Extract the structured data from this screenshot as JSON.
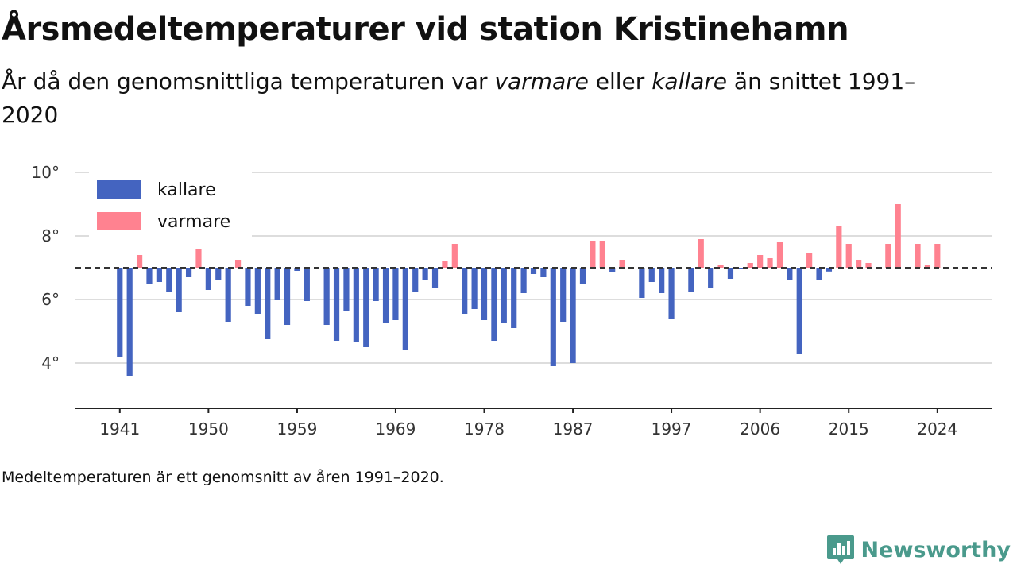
{
  "title": "Årsmedeltemperaturer vid station Kristinehamn",
  "subtitle": {
    "part1": "År då den genomsnittliga temperaturen var ",
    "em1": "varmare",
    "part2": " eller ",
    "em2": "kallare",
    "part3": " än snittet 1991–2020"
  },
  "footnote": "Medeltemperaturen är ett genomsnitt av åren 1991–2020.",
  "brand": "Newsworthy",
  "colors": {
    "cold": "#4464c0",
    "warm": "#ff8290",
    "grid": "#dddddd",
    "baseline": "#333333"
  },
  "chart_data": {
    "type": "bar",
    "baseline": 7.0,
    "ylim": [
      3,
      10.3
    ],
    "y_ticks": [
      4,
      6,
      8,
      10
    ],
    "y_tick_format": "{v}°",
    "x_ticks": [
      1941,
      1950,
      1959,
      1969,
      1978,
      1987,
      1997,
      2006,
      2015,
      2024
    ],
    "xlim": [
      1936.5,
      2029.5
    ],
    "legend": {
      "position": "top-left",
      "cold_label": "kallare",
      "warm_label": "varmare"
    },
    "years": [
      1941,
      1942,
      1943,
      1944,
      1945,
      1946,
      1947,
      1948,
      1949,
      1950,
      1951,
      1952,
      1953,
      1954,
      1955,
      1956,
      1957,
      1958,
      1959,
      1960,
      1961,
      1962,
      1963,
      1964,
      1965,
      1966,
      1967,
      1968,
      1969,
      1970,
      1971,
      1972,
      1973,
      1974,
      1975,
      1976,
      1977,
      1978,
      1979,
      1980,
      1981,
      1982,
      1983,
      1984,
      1985,
      1986,
      1987,
      1988,
      1989,
      1990,
      1991,
      1992,
      1993,
      1994,
      1995,
      1996,
      1997,
      1998,
      1999,
      2000,
      2001,
      2002,
      2003,
      2004,
      2005,
      2006,
      2007,
      2008,
      2009,
      2010,
      2011,
      2012,
      2013,
      2014,
      2015,
      2016,
      2017,
      2018,
      2019,
      2020,
      2021,
      2022,
      2023,
      2024
    ],
    "values": [
      4.2,
      3.6,
      7.4,
      6.5,
      6.55,
      6.25,
      5.6,
      6.7,
      7.6,
      6.3,
      6.6,
      5.3,
      7.25,
      5.8,
      5.55,
      4.75,
      6.0,
      5.2,
      6.9,
      5.95,
      7.0,
      5.2,
      4.7,
      5.65,
      4.65,
      4.5,
      5.95,
      5.25,
      5.35,
      4.4,
      6.25,
      6.6,
      6.35,
      7.2,
      7.75,
      5.55,
      5.7,
      5.35,
      4.7,
      5.25,
      5.1,
      6.2,
      6.8,
      6.7,
      3.9,
      5.3,
      4.0,
      6.5,
      7.85,
      7.85,
      6.85,
      7.25,
      7.0,
      6.05,
      6.55,
      6.2,
      5.4,
      7.0,
      6.25,
      7.9,
      6.35,
      7.08,
      6.65,
      6.95,
      7.15,
      7.4,
      7.3,
      7.8,
      6.6,
      4.3,
      7.45,
      6.6,
      6.88,
      8.3,
      7.75,
      7.25,
      7.15,
      7.0,
      7.75,
      9.0,
      7.0,
      7.75,
      7.1,
      7.75
    ]
  }
}
